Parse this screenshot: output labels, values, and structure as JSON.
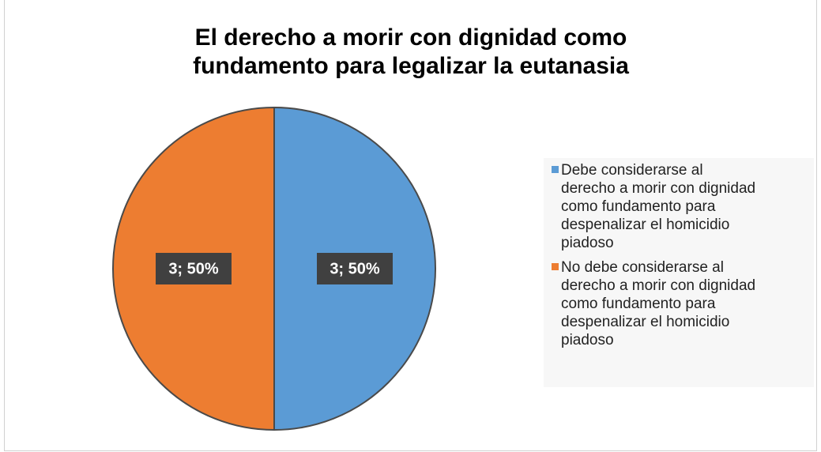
{
  "chart_data": {
    "type": "pie",
    "title": "El derecho a morir con dignidad como fundamento para legalizar la eutanasia",
    "categories": [
      "Debe considerarse al derecho a morir con dignidad como fundamento para despenalizar el homicidio piadoso",
      "No debe considerarse al derecho a morir con dignidad como fundamento para despenalizar el homicidio piadoso"
    ],
    "values": [
      3,
      3
    ],
    "value_labels": [
      "3; 50%",
      "3; 50%"
    ],
    "colors": [
      "#5b9bd5",
      "#ed7d31"
    ],
    "legend": "right"
  }
}
